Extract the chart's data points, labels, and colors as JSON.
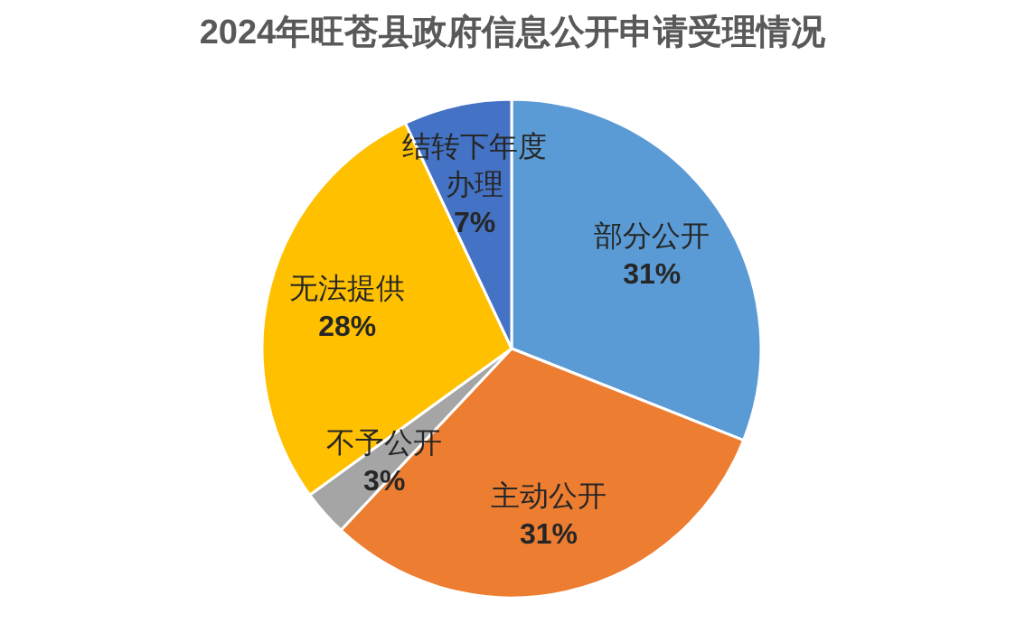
{
  "chart_data": {
    "type": "pie",
    "title": "2024年旺苍县政府信息公开申请受理情况",
    "categories": [
      "部分公开",
      "主动公开",
      "不予公开",
      "无法提供",
      "结转下年度办理"
    ],
    "values": [
      31,
      31,
      3,
      28,
      7
    ],
    "value_labels": [
      "31%",
      "31%",
      "3%",
      "28%",
      "7%"
    ],
    "colors": [
      "#5b9bd5",
      "#ed7d31",
      "#a5a5a5",
      "#ffc000",
      "#4472c4"
    ]
  }
}
